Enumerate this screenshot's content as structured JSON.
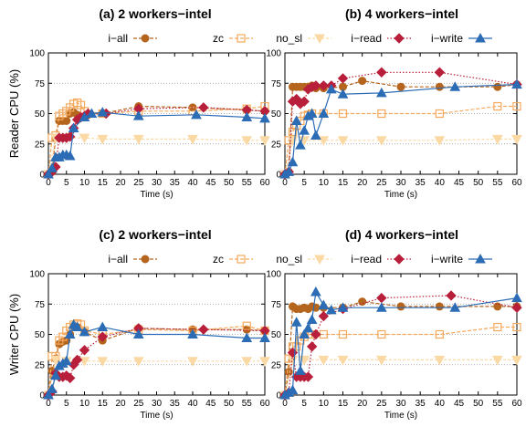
{
  "figure": {
    "row_ylabels": [
      "Reader CPU (%)",
      "Writer CPU (%)"
    ]
  },
  "colors": {
    "i-all": "#b5651d",
    "zc": "#f5a95c",
    "no_sl": "#fbd9a4",
    "i-read": "#b81f3b",
    "i-write": "#2b6cb5"
  },
  "chart_data": [
    {
      "type": "line",
      "title": "(a) 2 workers−intel",
      "xlabel": "Time (s)",
      "ylabel": "Reader CPU (%)",
      "xlim": [
        0,
        60
      ],
      "ylim": [
        0,
        100
      ],
      "xticks": [
        "0",
        "5",
        "10",
        "15",
        "20",
        "25",
        "30",
        "35",
        "40",
        "45",
        "50",
        "55",
        "60"
      ],
      "yticks": [
        "0",
        "25",
        "50",
        "75",
        "100"
      ],
      "grid": "horizontal-dotted",
      "legend": "top",
      "series": [
        {
          "name": "i−all",
          "x": [
            0,
            1,
            2,
            3,
            4,
            5,
            6,
            7,
            8,
            11,
            15,
            25,
            40,
            55,
            60
          ],
          "y": [
            0,
            2,
            30,
            44,
            44,
            44,
            50,
            51,
            49,
            49,
            50,
            56,
            55,
            53,
            52
          ]
        },
        {
          "name": "zc",
          "x": [
            0,
            1,
            2,
            3,
            4,
            5,
            6,
            7,
            8,
            9,
            10,
            15,
            25,
            40,
            55,
            60
          ],
          "y": [
            0,
            30,
            32,
            48,
            50,
            52,
            55,
            58,
            59,
            57,
            52,
            50,
            52,
            52,
            54,
            56
          ]
        },
        {
          "name": "no_sl",
          "x": [
            0,
            2,
            5,
            10,
            15,
            25,
            40,
            55,
            60
          ],
          "y": [
            0,
            30,
            30,
            30,
            29,
            29,
            29,
            28,
            28
          ]
        },
        {
          "name": "i−read",
          "x": [
            0,
            1,
            2,
            3,
            4,
            5,
            6,
            7,
            8,
            9,
            10,
            11,
            16,
            25,
            43,
            55,
            60
          ],
          "y": [
            0,
            2,
            6,
            30,
            30,
            30,
            31,
            38,
            45,
            47,
            48,
            50,
            50,
            54,
            55,
            53,
            52
          ]
        },
        {
          "name": "i−write",
          "x": [
            0,
            1,
            2,
            3,
            4,
            5,
            6,
            7,
            10,
            12,
            15,
            25,
            41,
            55,
            60
          ],
          "y": [
            0,
            5,
            14,
            14,
            16,
            16,
            15,
            38,
            47,
            50,
            51,
            48,
            49,
            47,
            46
          ]
        }
      ]
    },
    {
      "type": "line",
      "title": "(b) 4 workers−intel",
      "xlabel": "Time (s)",
      "ylabel": "",
      "xlim": [
        0,
        60
      ],
      "ylim": [
        0,
        100
      ],
      "xticks": [
        "0",
        "5",
        "10",
        "15",
        "20",
        "25",
        "30",
        "35",
        "40",
        "45",
        "50",
        "55",
        "60"
      ],
      "yticks": [
        "0",
        "25",
        "50",
        "75",
        "100"
      ],
      "grid": "horizontal-dotted",
      "legend": "top",
      "series": [
        {
          "name": "i−all",
          "x": [
            0,
            1,
            2,
            3,
            4,
            5,
            6,
            7,
            8,
            10,
            15,
            20,
            30,
            40,
            55,
            60
          ],
          "y": [
            0,
            2,
            72,
            72,
            72,
            72,
            72,
            73,
            71,
            71,
            72,
            77,
            72,
            72,
            72,
            74
          ]
        },
        {
          "name": "zc",
          "x": [
            0,
            1,
            2,
            3,
            4,
            5,
            6,
            7,
            10,
            15,
            25,
            40,
            55,
            60
          ],
          "y": [
            0,
            28,
            35,
            40,
            44,
            48,
            49,
            50,
            50,
            50,
            50,
            50,
            56,
            56
          ]
        },
        {
          "name": "no_sl",
          "x": [
            0,
            2,
            5,
            10,
            15,
            25,
            40,
            55,
            60
          ],
          "y": [
            0,
            28,
            28,
            28,
            28,
            28,
            28,
            29,
            29
          ]
        },
        {
          "name": "i−read",
          "x": [
            0,
            1,
            2,
            3,
            4,
            5,
            6,
            7,
            8,
            10,
            12,
            15,
            25,
            40,
            60
          ],
          "y": [
            0,
            2,
            60,
            62,
            58,
            60,
            70,
            72,
            73,
            73,
            73,
            79,
            84,
            84,
            74
          ]
        },
        {
          "name": "i−write",
          "x": [
            0,
            1,
            2,
            3,
            4,
            5,
            6,
            7,
            8,
            10,
            12,
            15,
            25,
            44,
            60
          ],
          "y": [
            0,
            2,
            10,
            44,
            24,
            36,
            48,
            50,
            32,
            50,
            70,
            66,
            67,
            72,
            74
          ]
        }
      ]
    },
    {
      "type": "line",
      "title": "(c) 2 workers−intel",
      "xlabel": "Time (s)",
      "ylabel": "Writer CPU (%)",
      "xlim": [
        0,
        60
      ],
      "ylim": [
        0,
        100
      ],
      "xticks": [
        "0",
        "5",
        "10",
        "15",
        "20",
        "25",
        "30",
        "35",
        "40",
        "45",
        "50",
        "55",
        "60"
      ],
      "yticks": [
        "0",
        "25",
        "50",
        "75",
        "100"
      ],
      "grid": "horizontal-dotted",
      "legend": "top",
      "series": [
        {
          "name": "i−all",
          "x": [
            0,
            1,
            2,
            3,
            4,
            5,
            6,
            7,
            8,
            10,
            15,
            25,
            40,
            55,
            60
          ],
          "y": [
            0,
            20,
            30,
            42,
            44,
            45,
            50,
            57,
            56,
            52,
            45,
            55,
            54,
            54,
            53
          ]
        },
        {
          "name": "zc",
          "x": [
            0,
            1,
            2,
            3,
            4,
            5,
            6,
            7,
            8,
            9,
            10,
            15,
            25,
            40,
            55,
            60
          ],
          "y": [
            0,
            32,
            32,
            45,
            48,
            53,
            56,
            58,
            59,
            58,
            53,
            50,
            54,
            53,
            57,
            53
          ]
        },
        {
          "name": "no_sl",
          "x": [
            0,
            2,
            5,
            10,
            15,
            25,
            40,
            55,
            60
          ],
          "y": [
            0,
            29,
            28,
            28,
            28,
            28,
            28,
            28,
            28
          ]
        },
        {
          "name": "i−read",
          "x": [
            0,
            1,
            2,
            3,
            4,
            5,
            6,
            7,
            8,
            10,
            15,
            25,
            43,
            60
          ],
          "y": [
            0,
            3,
            18,
            15,
            15,
            16,
            14,
            25,
            29,
            37,
            48,
            55,
            54,
            53
          ]
        },
        {
          "name": "i−write",
          "x": [
            0,
            1,
            2,
            3,
            4,
            5,
            6,
            7,
            8,
            10,
            15,
            25,
            40,
            55,
            60
          ],
          "y": [
            0,
            5,
            16,
            24,
            26,
            28,
            50,
            58,
            56,
            52,
            56,
            50,
            50,
            47,
            47
          ]
        }
      ]
    },
    {
      "type": "line",
      "title": "(d) 4 workers−intel",
      "xlabel": "Time (s)",
      "ylabel": "",
      "xlim": [
        0,
        60
      ],
      "ylim": [
        0,
        100
      ],
      "xticks": [
        "0",
        "5",
        "10",
        "15",
        "20",
        "25",
        "30",
        "35",
        "40",
        "45",
        "50",
        "55",
        "60"
      ],
      "yticks": [
        "0",
        "25",
        "50",
        "75",
        "100"
      ],
      "grid": "horizontal-dotted",
      "legend": "top",
      "series": [
        {
          "name": "i−all",
          "x": [
            0,
            1,
            2,
            3,
            4,
            5,
            6,
            7,
            8,
            10,
            15,
            20,
            30,
            40,
            55,
            60
          ],
          "y": [
            0,
            19,
            73,
            71,
            71,
            72,
            71,
            73,
            72,
            72,
            72,
            77,
            73,
            73,
            73,
            73
          ]
        },
        {
          "name": "zc",
          "x": [
            0,
            1,
            2,
            3,
            4,
            5,
            6,
            7,
            10,
            15,
            25,
            40,
            55,
            60
          ],
          "y": [
            0,
            30,
            40,
            40,
            45,
            48,
            50,
            50,
            50,
            50,
            50,
            50,
            56,
            56
          ]
        },
        {
          "name": "no_sl",
          "x": [
            0,
            2,
            5,
            10,
            15,
            25,
            40,
            55,
            60
          ],
          "y": [
            0,
            29,
            29,
            29,
            29,
            29,
            29,
            29,
            29
          ]
        },
        {
          "name": "i−read",
          "x": [
            0,
            1,
            2,
            3,
            4,
            5,
            6,
            7,
            8,
            10,
            15,
            25,
            43,
            60
          ],
          "y": [
            0,
            2,
            35,
            15,
            15,
            15,
            15,
            40,
            50,
            65,
            71,
            80,
            82,
            72
          ]
        },
        {
          "name": "i−write",
          "x": [
            0,
            1,
            2,
            3,
            4,
            5,
            6,
            7,
            8,
            10,
            12,
            15,
            25,
            44,
            60
          ],
          "y": [
            0,
            2,
            4,
            60,
            20,
            50,
            55,
            62,
            85,
            74,
            70,
            72,
            72,
            72,
            80
          ]
        }
      ]
    }
  ]
}
